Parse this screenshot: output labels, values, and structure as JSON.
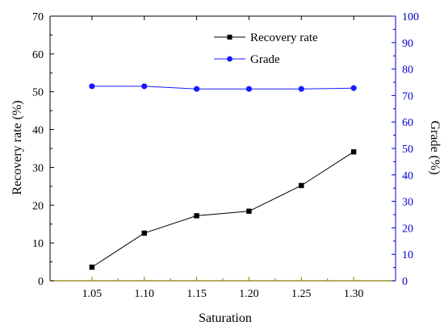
{
  "chart_data": {
    "type": "line",
    "xlabel": "Saturation",
    "ylabel": "Recovery rate (%)",
    "y2label": "Grade (%)",
    "categories": [
      "1.05",
      "1.10",
      "1.15",
      "1.20",
      "1.25",
      "1.30"
    ],
    "x": [
      1.05,
      1.1,
      1.15,
      1.2,
      1.25,
      1.3
    ],
    "xlim": [
      1.01,
      1.34
    ],
    "ylim": [
      0,
      70
    ],
    "y2lim": [
      0,
      100
    ],
    "yticks": [
      "0",
      "10",
      "20",
      "30",
      "40",
      "50",
      "60",
      "70"
    ],
    "y2ticks": [
      "0",
      "10",
      "20",
      "30",
      "40",
      "50",
      "60",
      "70",
      "80",
      "90",
      "100"
    ],
    "grid": false,
    "legend_position": "top-right",
    "series": [
      {
        "name": "Recovery rate",
        "axis": "left",
        "marker": "square",
        "color": "#000000",
        "values": [
          3.6,
          12.6,
          17.2,
          18.4,
          25.2,
          34.1
        ]
      },
      {
        "name": "Grade",
        "axis": "right",
        "marker": "circle",
        "color": "#1a1aff",
        "values": [
          73.5,
          73.5,
          72.5,
          72.5,
          72.5,
          72.8
        ]
      }
    ],
    "colors": {
      "left_axis": "#000000",
      "right_axis": "#0000cc",
      "bottom_axis": "#8a7d00"
    }
  }
}
